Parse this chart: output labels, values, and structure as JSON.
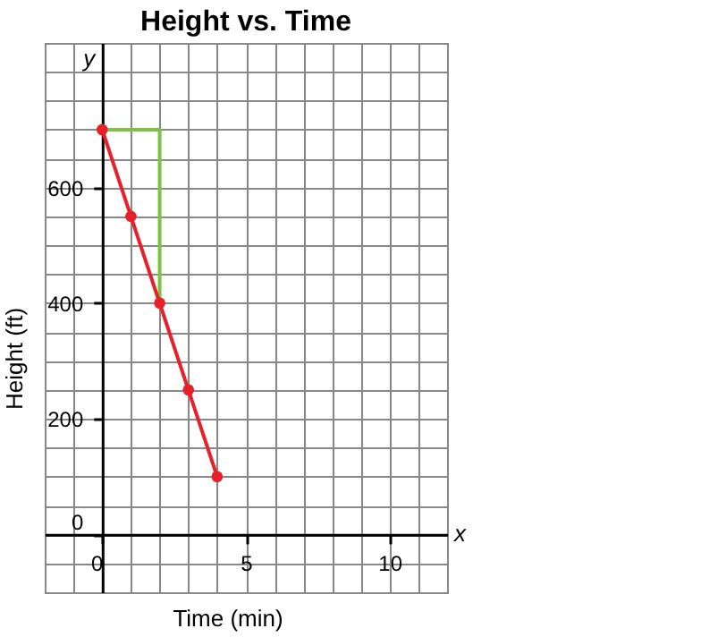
{
  "chart_data": {
    "type": "line",
    "title": "Height vs. Time",
    "xlabel": "Time (min)",
    "ylabel": "Height (ft)",
    "annotations": [
      "y",
      "x"
    ],
    "xlim": [
      -2,
      12
    ],
    "ylim": [
      -100,
      850
    ],
    "xticks": [
      {
        "value": -2,
        "label": null
      },
      {
        "value": -1,
        "label": null
      },
      0,
      {
        "value": 1,
        "label": null
      },
      {
        "value": 2,
        "label": null
      },
      {
        "value": 3,
        "label": null
      },
      {
        "value": 4,
        "label": null
      },
      5,
      {
        "value": 6,
        "label": null
      },
      {
        "value": 7,
        "label": null
      },
      {
        "value": 8,
        "label": null
      },
      {
        "value": 9,
        "label": null
      },
      10,
      {
        "value": 11,
        "label": null
      },
      {
        "value": 12,
        "label": null
      }
    ],
    "yticks": [
      {
        "value": -100,
        "label": null
      },
      {
        "value": -50,
        "label": null
      },
      0,
      {
        "value": 50,
        "label": null
      },
      {
        "value": 100,
        "label": null
      },
      {
        "value": 150,
        "label": null
      },
      200,
      {
        "value": 250,
        "label": null
      },
      {
        "value": 300,
        "label": null
      },
      {
        "value": 350,
        "label": null
      },
      400,
      {
        "value": 450,
        "label": null
      },
      {
        "value": 500,
        "label": null
      },
      {
        "value": 550,
        "label": null
      },
      600,
      {
        "value": 650,
        "label": null
      },
      {
        "value": 700,
        "label": null
      },
      {
        "value": 750,
        "label": null
      },
      {
        "value": 800,
        "label": null
      },
      {
        "value": 850,
        "label": null
      }
    ],
    "grid": true,
    "marker": "circle",
    "line_style": "solid",
    "series": [
      {
        "color": "#e8202a",
        "x": [
          0,
          1,
          2,
          3,
          4
        ],
        "values": [
          700,
          550,
          400,
          250,
          100
        ]
      },
      {
        "color": "#7dc242",
        "marker": "none",
        "x": [
          0,
          2,
          2
        ],
        "values": [
          700,
          700,
          400
        ]
      }
    ]
  }
}
